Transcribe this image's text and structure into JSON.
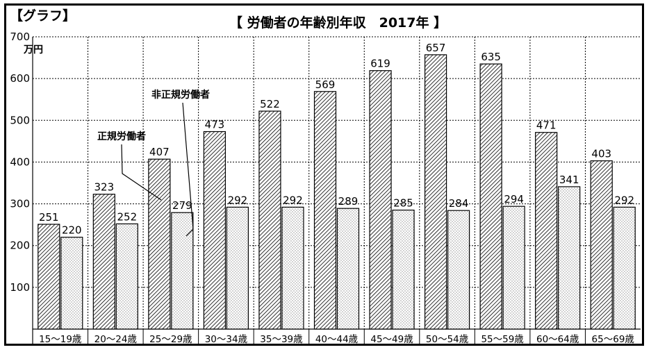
{
  "graph_tag": "【グラフ】",
  "title": "【 労働者の年齢別年収　2017年 】",
  "chart_data": {
    "type": "bar",
    "title": "【 労働者の年齢別年収　2017年 】",
    "xlabel": "",
    "ylabel": "万円",
    "ylim": [
      0,
      700
    ],
    "yticks": [
      100,
      200,
      300,
      400,
      500,
      600,
      700
    ],
    "grid": true,
    "categories": [
      "15～19歳",
      "20～24歳",
      "25～29歳",
      "30～34歳",
      "35～39歳",
      "40～44歳",
      "45～49歳",
      "50～54歳",
      "55～59歳",
      "60～64歳",
      "65～69歳"
    ],
    "series": [
      {
        "name": "正規労働者",
        "values": [
          251,
          323,
          407,
          473,
          522,
          569,
          619,
          657,
          635,
          471,
          403
        ]
      },
      {
        "name": "非正規労働者",
        "values": [
          220,
          252,
          279,
          292,
          292,
          289,
          285,
          284,
          294,
          341,
          292
        ]
      }
    ]
  }
}
